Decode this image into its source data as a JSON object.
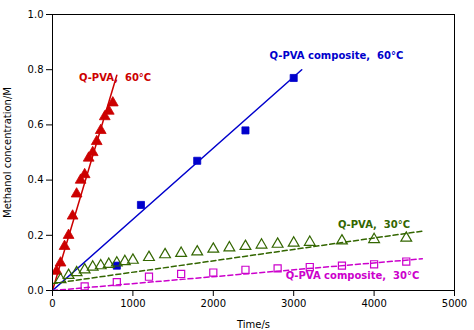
{
  "chart_data": {
    "type": "scatter",
    "xlabel": "Time/s",
    "ylabel": "Methanol concentration/M",
    "xlim": [
      0,
      5000
    ],
    "ylim": [
      0,
      1.0
    ],
    "xticks": [
      0,
      1000,
      2000,
      3000,
      4000,
      5000
    ],
    "yticks": [
      {
        "value": 0,
        "label": "0.0"
      },
      0.2,
      0.4,
      0.6,
      0.8,
      {
        "value": 1.0,
        "label": "1.0"
      }
    ],
    "grid": false,
    "series": [
      {
        "color": "#cc0000",
        "marker": "triangle",
        "line_style": "solid",
        "x": [
          50,
          100,
          150,
          200,
          250,
          300,
          350,
          400,
          450,
          500,
          550,
          600,
          650,
          700,
          750
        ],
        "values": [
          0.07,
          0.1,
          0.16,
          0.2,
          0.27,
          0.35,
          0.4,
          0.42,
          0.48,
          0.5,
          0.54,
          0.58,
          0.63,
          0.65,
          0.68
        ],
        "fit": {
          "x": [
            0,
            800
          ],
          "values": [
            0.0,
            0.78
          ]
        }
      },
      {
        "color": "#0000cc",
        "marker": "square",
        "line_style": "solid",
        "x": [
          800,
          1100,
          1800,
          2400,
          3000
        ],
        "values": [
          0.09,
          0.31,
          0.47,
          0.58,
          0.77
        ],
        "fit": {
          "x": [
            0,
            3100
          ],
          "values": [
            0.0,
            0.8
          ]
        }
      },
      {
        "color": "#336600",
        "marker": "triangle-open",
        "line_style": "dashed",
        "x": [
          100,
          200,
          300,
          400,
          500,
          600,
          700,
          800,
          900,
          1000,
          1200,
          1400,
          1600,
          1800,
          2000,
          2200,
          2400,
          2600,
          2800,
          3000,
          3200,
          3600,
          4000,
          4400
        ],
        "values": [
          0.04,
          0.055,
          0.065,
          0.075,
          0.085,
          0.09,
          0.095,
          0.1,
          0.105,
          0.11,
          0.12,
          0.13,
          0.135,
          0.14,
          0.15,
          0.155,
          0.16,
          0.165,
          0.168,
          0.172,
          0.175,
          0.18,
          0.185,
          0.19
        ],
        "fit": {
          "x": [
            0,
            4600
          ],
          "values": [
            0.025,
            0.215
          ]
        }
      },
      {
        "color": "#cc00cc",
        "marker": "square-open",
        "line_style": "dashed",
        "x": [
          400,
          800,
          1200,
          1600,
          2000,
          2400,
          2800,
          3200,
          3600,
          4000,
          4400
        ],
        "values": [
          0.015,
          0.03,
          0.05,
          0.06,
          0.065,
          0.075,
          0.08,
          0.085,
          0.09,
          0.095,
          0.105
        ],
        "fit": {
          "x": [
            0,
            4600
          ],
          "values": [
            0.0,
            0.115
          ]
        }
      }
    ],
    "annotations": [
      {
        "text": "Q-PVA,  60°C",
        "x": 330,
        "y": 0.76,
        "color": "#cc0000"
      },
      {
        "text": "Q-PVA composite,  60°C",
        "x": 2700,
        "y": 0.84,
        "color": "#0000cc"
      },
      {
        "text": "Q-PVA,  30°C",
        "x": 3550,
        "y": 0.225,
        "color": "#336600"
      },
      {
        "text": "Q-PVA composite,  30°C",
        "x": 2900,
        "y": 0.04,
        "color": "#cc00cc"
      }
    ]
  }
}
